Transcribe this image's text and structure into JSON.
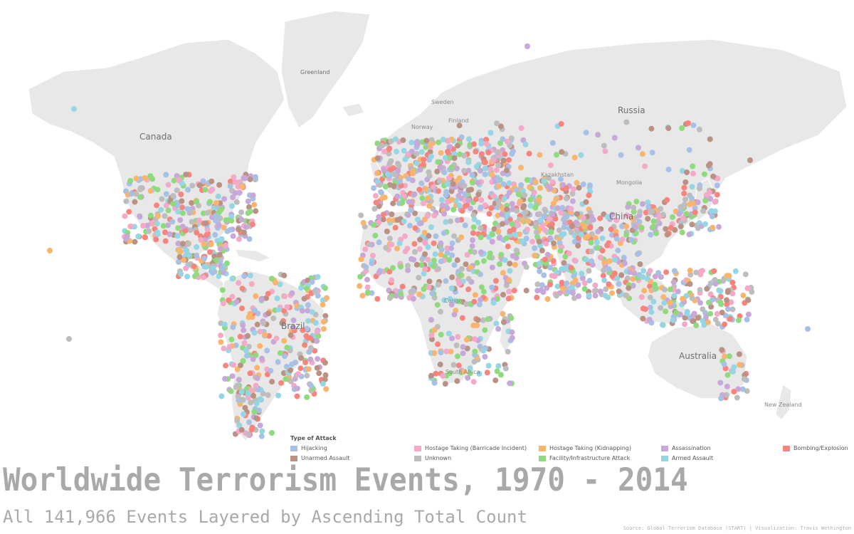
{
  "map": {
    "labels": {
      "greenland": "Greenland",
      "canada": "Canada",
      "russia": "Russia",
      "sweden": "Sweden",
      "finland": "Finland",
      "norway": "Norway",
      "kazakhstan": "Kazakhstan",
      "mongolia": "Mongolia",
      "china": "China",
      "brazil": "Brazil",
      "australia": "Australia",
      "new_zealand": "New Zealand",
      "congo": "Congo",
      "south_africa": "South Africa"
    }
  },
  "legend": {
    "title": "Type of Attack",
    "items": [
      {
        "label": "Hijacking",
        "color": "#a7c1e6"
      },
      {
        "label": "Unarmed Assault",
        "color": "#b99284"
      },
      {
        "label": "Hostage Taking (Barricade Incident)",
        "color": "#f5a9c9"
      },
      {
        "label": "Unknown",
        "color": "#bdbdbd"
      },
      {
        "label": "Hostage Taking (Kidnapping)",
        "color": "#f9b46d"
      },
      {
        "label": "Facility/Infrastructure Attack",
        "color": "#8edb7e"
      },
      {
        "label": "Assassination",
        "color": "#c7a8d8"
      },
      {
        "label": "Armed Assault",
        "color": "#94d6e3"
      },
      {
        "label": "Bombing/Explosion",
        "color": "#f7857e"
      }
    ]
  },
  "title": "Worldwide Terrorism Events, 1970 - 2014",
  "subtitle": "All 141,966 Events Layered by Ascending Total Count",
  "source": "Source: Global Terrorism Database (START) | Visualization: Travis Wethington"
}
